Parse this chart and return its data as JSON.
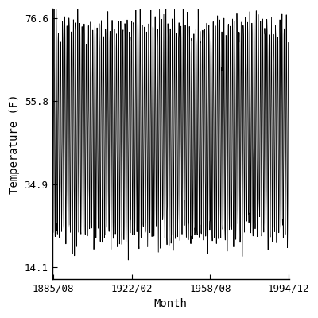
{
  "title": "",
  "xlabel": "Month",
  "ylabel": "Temperature (F)",
  "x_tick_labels": [
    "1885/08",
    "1922/02",
    "1958/08",
    "1994/12"
  ],
  "y_tick_labels": [
    "14.1",
    "34.9",
    "55.8",
    "76.6"
  ],
  "y_tick_values": [
    14.1,
    34.9,
    55.8,
    76.6
  ],
  "start_year": 1885,
  "start_month": 8,
  "end_year": 1994,
  "end_month": 12,
  "line_color": "#000000",
  "background_color": "#ffffff",
  "ylim": [
    11.0,
    79.0
  ],
  "linewidth": 0.6,
  "mean_temp": 48.5,
  "amplitude": 26.5,
  "noise_std": 2.5,
  "font_family": "monospace",
  "font_size": 9
}
